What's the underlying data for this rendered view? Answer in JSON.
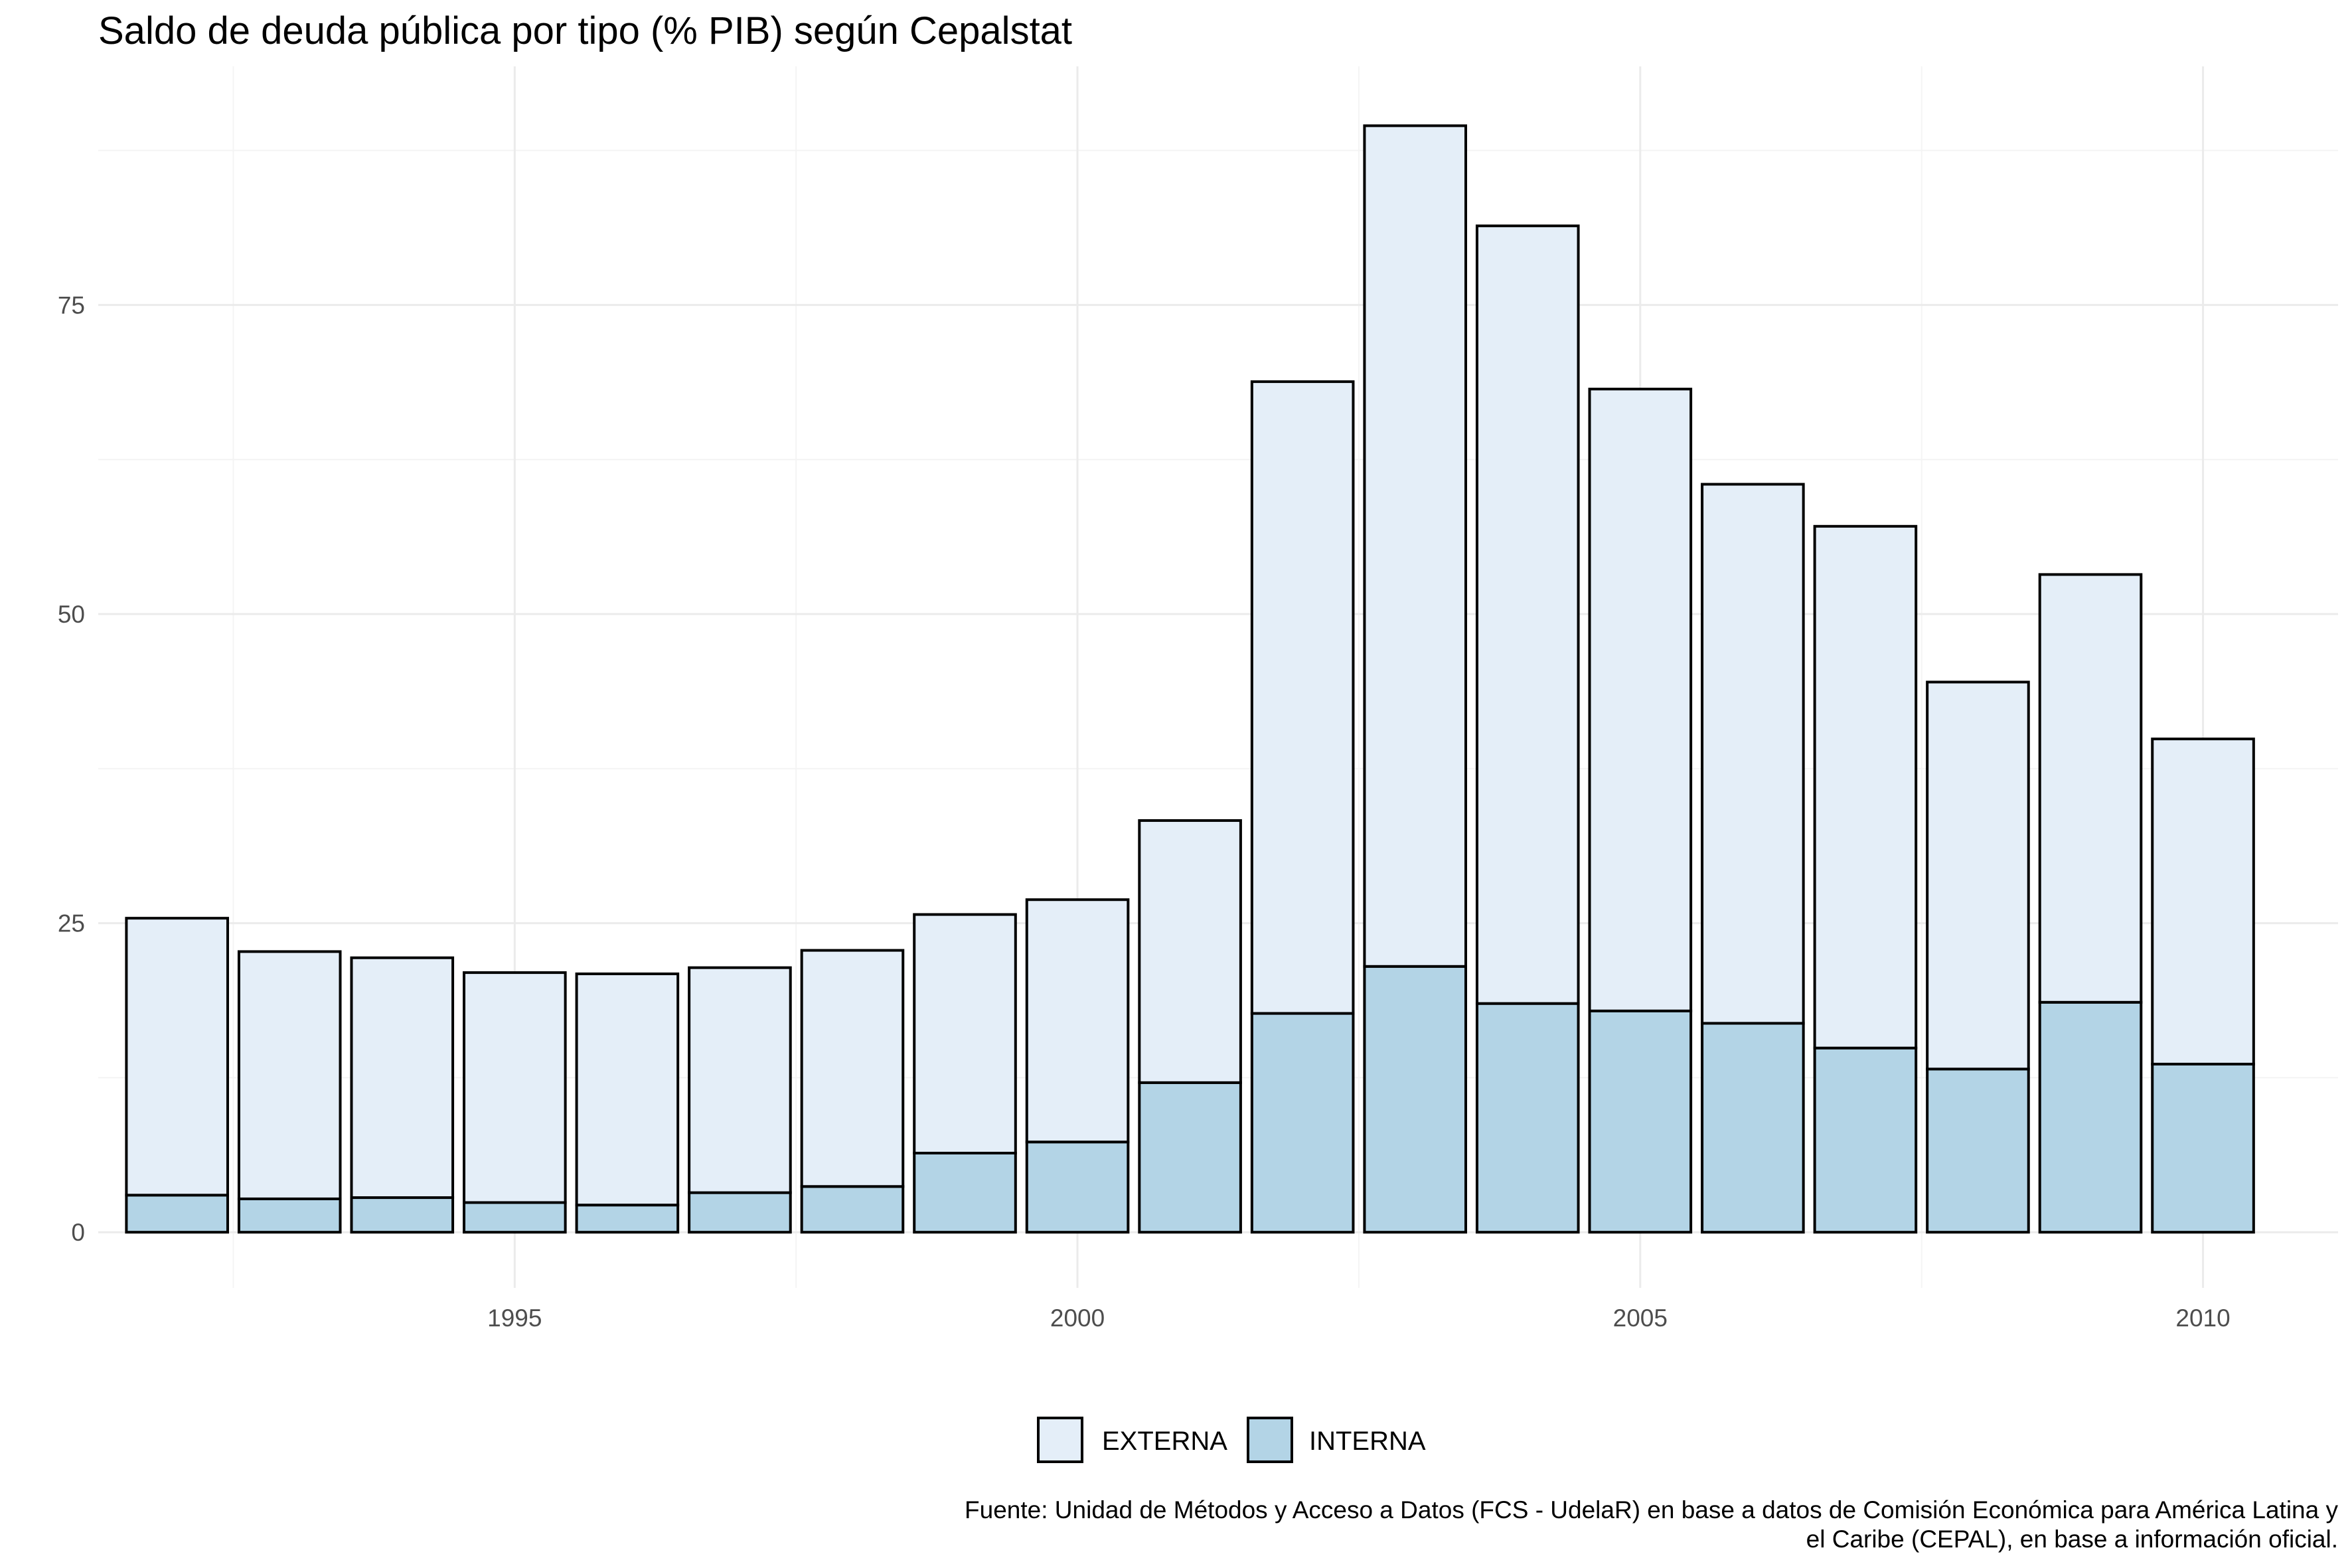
{
  "chart_data": {
    "type": "bar",
    "stacked": true,
    "title": "Saldo de deuda pública por tipo (% PIB) según Cepalstat",
    "xlabel": "",
    "ylabel": "",
    "x_tick_labels": [
      "1995",
      "2000",
      "2005",
      "2010"
    ],
    "y_tick_labels": [
      "0",
      "25",
      "50",
      "75"
    ],
    "x_ticks": [
      1995,
      2000,
      2005,
      2010
    ],
    "y_ticks": [
      0,
      25,
      50,
      75
    ],
    "xlim": [
      1991.3,
      2011.2
    ],
    "ylim": [
      -4.5,
      94.3
    ],
    "grid": true,
    "legend_position": "bottom",
    "categories": [
      1992,
      1993,
      1994,
      1995,
      1996,
      1997,
      1998,
      1999,
      2000,
      2001,
      2002,
      2003,
      2004,
      2005,
      2006,
      2007,
      2008,
      2009,
      2010
    ],
    "series": [
      {
        "name": "INTERNA",
        "color": "#b3d4e6",
        "values": [
          3.0,
          2.7,
          2.8,
          2.4,
          2.2,
          3.2,
          3.7,
          6.4,
          7.3,
          12.1,
          17.7,
          21.5,
          18.5,
          17.9,
          16.9,
          14.9,
          13.2,
          18.6,
          13.6
        ]
      },
      {
        "name": "EXTERNA",
        "color": "#e4eef8",
        "values": [
          22.4,
          20.0,
          19.4,
          18.6,
          18.7,
          18.2,
          19.1,
          19.3,
          19.6,
          21.2,
          51.1,
          68.0,
          62.9,
          50.3,
          43.6,
          42.2,
          31.3,
          34.6,
          26.3
        ]
      }
    ],
    "legend": [
      {
        "name": "EXTERNA",
        "color": "#e4eef8"
      },
      {
        "name": "INTERNA",
        "color": "#b3d4e6"
      }
    ],
    "caption": [
      "Fuente: Unidad de Métodos y Acceso a Datos (FCS - UdelaR) en base a datos de Comisión Económica para América Latina y",
      "el Caribe (CEPAL), en base a información oficial."
    ]
  }
}
